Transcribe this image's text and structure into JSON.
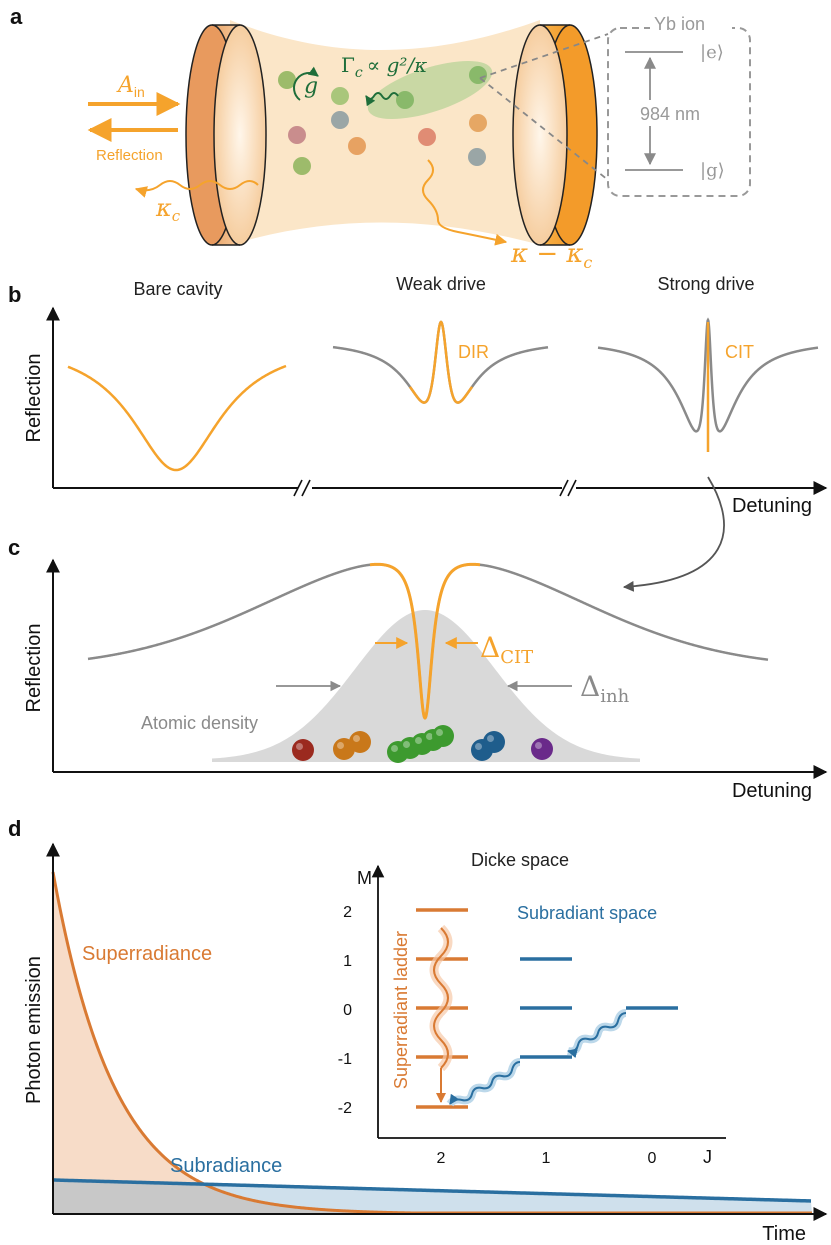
{
  "colors": {
    "orange": "#f5a32c",
    "darkorange": "#d97a33",
    "gray": "#8a8a8a",
    "lightgray": "#cfcfcf",
    "green": "#2e8b3b",
    "darkgreen": "#1f6e3a",
    "blue": "#2a6fa0",
    "lightblue": "#cfe2ee",
    "peach": "#f7d9c4",
    "beam": "#fbe6c8"
  },
  "panel_a": {
    "label": "a",
    "ion_label": "Yb ion",
    "excited": "|e⟩",
    "ground": "|g⟩",
    "wavelength": "984 nm",
    "ain": "A",
    "ain_sub": "in",
    "reflection": "Reflection",
    "kappa_c": "κ",
    "kappa_c_sub": "c",
    "g": "g",
    "gamma": "Γ",
    "gamma_sub": "c",
    "gamma_rel": "∝ g²/κ",
    "kappa_loss": "κ − κ",
    "kappa_loss_sub": "c"
  },
  "panel_b": {
    "label": "b",
    "titles": [
      "Bare cavity",
      "Weak drive",
      "Strong drive"
    ],
    "ylabel": "Reflection",
    "xlabel": "Detuning",
    "dir": "DIR",
    "cit": "CIT"
  },
  "panel_c": {
    "label": "c",
    "ylabel": "Reflection",
    "xlabel": "Detuning",
    "delta_cit": "Δ",
    "delta_cit_sub": "CIT",
    "delta_inh": "Δ",
    "delta_inh_sub": "inh",
    "atomic_density": "Atomic density",
    "atom_colors": [
      "#9b2a1f",
      "#c9781a",
      "#c9781a",
      "#3d9a2f",
      "#3d9a2f",
      "#3d9a2f",
      "#3d9a2f",
      "#3d9a2f",
      "#1f5d8c",
      "#1f5d8c",
      "#6a2a8a"
    ]
  },
  "panel_d": {
    "label": "d",
    "ylabel": "Photon emission",
    "xlabel": "Time",
    "superradiance": "Superradiance",
    "subradiance": "Subradiance",
    "dicke_title": "Dicke space",
    "m_axis": "M",
    "j_axis": "J",
    "m_ticks": [
      "2",
      "1",
      "0",
      "-1",
      "-2"
    ],
    "j_ticks": [
      "2",
      "1",
      "0"
    ],
    "ladder_label": "Superradiant ladder",
    "subradiant_label": "Subradiant space"
  }
}
